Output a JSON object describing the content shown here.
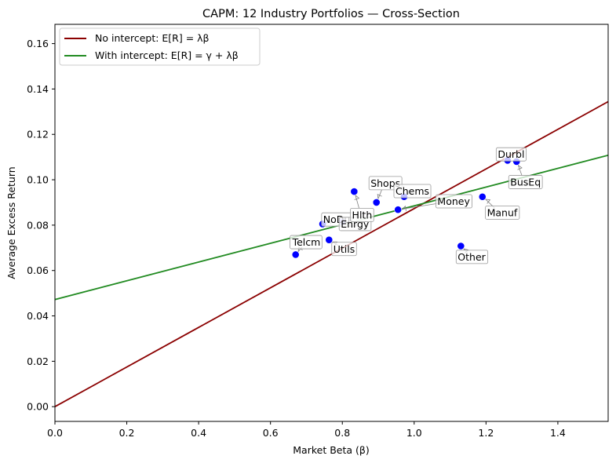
{
  "chart_data": {
    "type": "scatter",
    "title": "CAPM: 12 Industry Portfolios — Cross-Section",
    "xlabel": "Market Beta (β)",
    "ylabel": "Average Excess Return",
    "xlim": [
      0.0,
      1.54
    ],
    "ylim": [
      -0.0065,
      0.1685
    ],
    "xticks": [
      0.0,
      0.2,
      0.4,
      0.6,
      0.8,
      1.0,
      1.2,
      1.4
    ],
    "xtick_labels": [
      "0.0",
      "0.2",
      "0.4",
      "0.6",
      "0.8",
      "1.0",
      "1.2",
      "1.4"
    ],
    "yticks": [
      0.0,
      0.02,
      0.04,
      0.06,
      0.08,
      0.1,
      0.12,
      0.14,
      0.16
    ],
    "ytick_labels": [
      "0.00",
      "0.02",
      "0.04",
      "0.06",
      "0.08",
      "0.10",
      "0.12",
      "0.14",
      "0.16"
    ],
    "grid": false,
    "legend_position": "top-left",
    "points": [
      {
        "name": "Telcm",
        "x": 0.67,
        "y": 0.067
      },
      {
        "name": "Utils",
        "x": 0.763,
        "y": 0.0735
      },
      {
        "name": "NoDur",
        "x": 0.745,
        "y": 0.0805
      },
      {
        "name": "Enrgy",
        "x": 0.8,
        "y": 0.0815
      },
      {
        "name": "Hlth",
        "x": 0.833,
        "y": 0.0948
      },
      {
        "name": "Shops",
        "x": 0.895,
        "y": 0.09
      },
      {
        "name": "Chems",
        "x": 0.972,
        "y": 0.0925
      },
      {
        "name": "Money",
        "x": 0.955,
        "y": 0.0868
      },
      {
        "name": "Manuf",
        "x": 1.19,
        "y": 0.0925
      },
      {
        "name": "Other",
        "x": 1.13,
        "y": 0.0708
      },
      {
        "name": "Durbl",
        "x": 1.26,
        "y": 0.1085
      },
      {
        "name": "BusEq",
        "x": 1.285,
        "y": 0.108
      }
    ],
    "point_labels": [
      {
        "text": "Telcm",
        "pt": 0,
        "lx": 0.7,
        "ly": 0.0725
      },
      {
        "text": "Utils",
        "pt": 1,
        "lx": 0.805,
        "ly": 0.0695
      },
      {
        "text": "NoDur",
        "pt": 2,
        "lx": 0.79,
        "ly": 0.0825
      },
      {
        "text": "Enrgy",
        "pt": 3,
        "lx": 0.835,
        "ly": 0.0805
      },
      {
        "text": "Hlth",
        "pt": 4,
        "lx": 0.855,
        "ly": 0.0845
      },
      {
        "text": "Shops",
        "pt": 5,
        "lx": 0.92,
        "ly": 0.0985
      },
      {
        "text": "Chems",
        "pt": 6,
        "lx": 0.995,
        "ly": 0.095
      },
      {
        "text": "Money",
        "pt": 7,
        "lx": 1.11,
        "ly": 0.0905
      },
      {
        "text": "Manuf",
        "pt": 8,
        "lx": 1.245,
        "ly": 0.0855
      },
      {
        "text": "Other",
        "pt": 9,
        "lx": 1.16,
        "ly": 0.066
      },
      {
        "text": "Durbl",
        "pt": 10,
        "lx": 1.27,
        "ly": 0.1112
      },
      {
        "text": "BusEq",
        "pt": 11,
        "lx": 1.31,
        "ly": 0.099
      }
    ],
    "series": [
      {
        "name": "No intercept: E[R] = λβ",
        "intercept": 0.0,
        "slope": 0.0873,
        "color": "#8b0000"
      },
      {
        "name": "With intercept: E[R] = γ + λβ",
        "intercept": 0.0472,
        "slope": 0.0413,
        "color": "#228b22"
      }
    ],
    "point_color": "#0000ff"
  }
}
